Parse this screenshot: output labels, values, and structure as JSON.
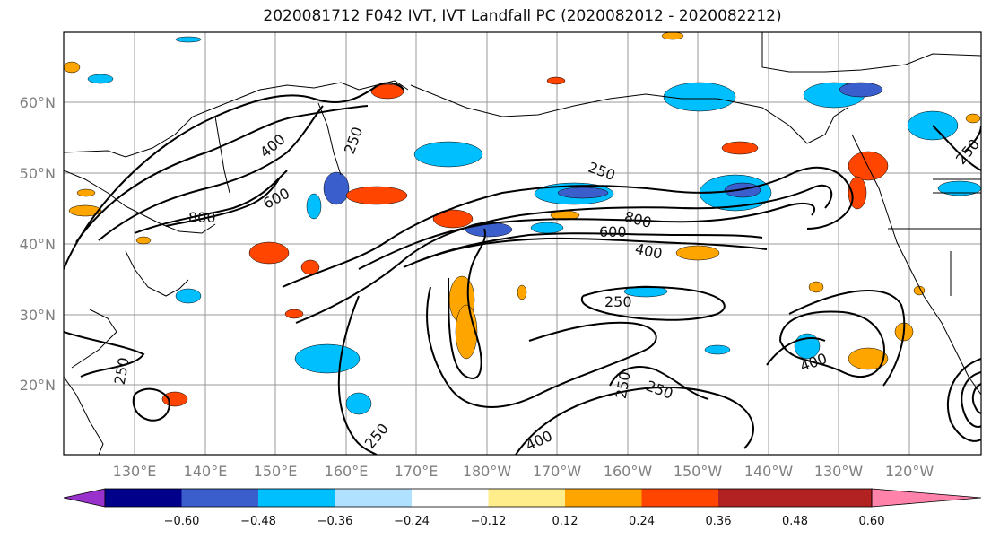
{
  "title": "2020081712 F042 IVT, IVT Landfall PC (2020082012 - 2020082212)",
  "lat_labels": [
    "60°N",
    "50°N",
    "40°N",
    "30°N",
    "20°N"
  ],
  "lon_labels": [
    "130°E",
    "140°E",
    "150°E",
    "160°E",
    "170°E",
    "180°W",
    "170°W",
    "160°W",
    "150°W",
    "140°W",
    "130°W",
    "120°W"
  ],
  "contour_labels": [
    "400",
    "600",
    "800",
    "250",
    "250",
    "800",
    "600",
    "400",
    "250",
    "250",
    "250",
    "250",
    "400",
    "250",
    "400",
    "250"
  ],
  "colorbar": {
    "colors": [
      "#9932CC",
      "#00008B",
      "#3A5FCD",
      "#00BFFF",
      "#B0E2FF",
      "#FFFFFF",
      "#FFEC8B",
      "#FFA500",
      "#FF4500",
      "#B22222",
      "#FF82AB"
    ],
    "tick_labels": [
      "−0.60",
      "−0.48",
      "−0.36",
      "−0.24",
      "−0.12",
      "0.12",
      "0.24",
      "0.36",
      "0.48",
      "0.60"
    ]
  },
  "colors": {
    "grid": "#999999",
    "contour": "#000000",
    "axis_label": "#808080"
  }
}
